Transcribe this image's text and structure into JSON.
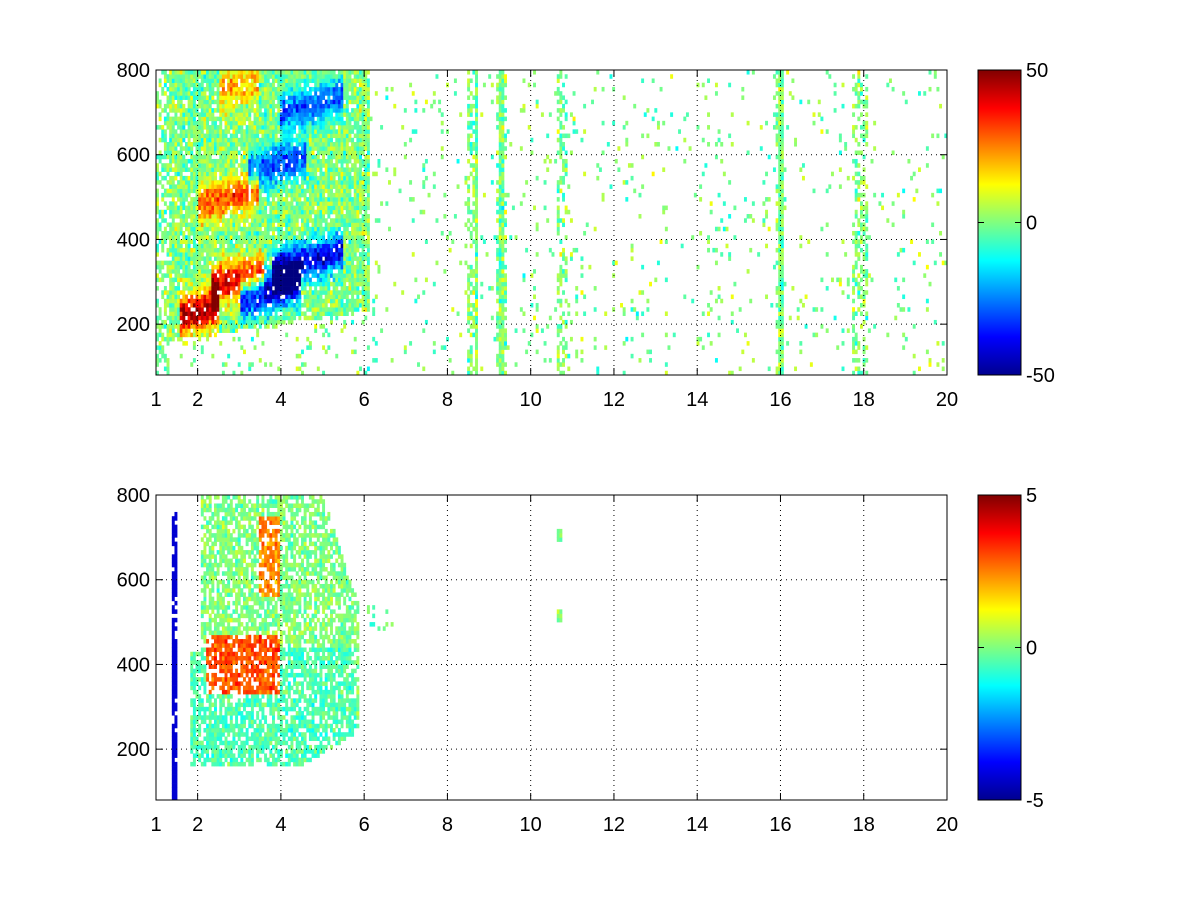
{
  "chart_data": [
    {
      "type": "heatmap",
      "title": "",
      "xlabel": "",
      "ylabel": "",
      "xlim": [
        1,
        20
      ],
      "ylim": [
        80,
        800
      ],
      "x_ticks": [
        1,
        2,
        4,
        6,
        8,
        10,
        12,
        14,
        16,
        18,
        20
      ],
      "x_tick_labels": [
        "1",
        "2",
        "4",
        "6",
        "8",
        "10",
        "12",
        "14",
        "16",
        "18",
        "20"
      ],
      "y_ticks": [
        200,
        400,
        600,
        800
      ],
      "y_tick_labels": [
        "200",
        "400",
        "600",
        "800"
      ],
      "grid": true,
      "colormap": "jet",
      "colorbar": {
        "range": [
          -50,
          50
        ],
        "ticks": [
          50,
          0,
          -50
        ],
        "tick_labels": [
          "50",
          "0",
          "-50"
        ]
      },
      "features": [
        {
          "x_range": [
            1.6,
            2.5
          ],
          "y": 220,
          "value": 45
        },
        {
          "x_range": [
            2.3,
            3.6
          ],
          "y": 290,
          "value": 40
        },
        {
          "x_range": [
            3.0,
            4.5
          ],
          "y": 260,
          "value": -45
        },
        {
          "x_range": [
            3.8,
            5.5
          ],
          "y": 330,
          "value": -40
        },
        {
          "x_range": [
            2.0,
            3.5
          ],
          "y": 480,
          "value": 30
        },
        {
          "x_range": [
            3.2,
            4.6
          ],
          "y": 560,
          "value": -30
        },
        {
          "x_range": [
            2.5,
            3.5
          ],
          "y": 750,
          "value": 20
        },
        {
          "x_range": [
            4.0,
            5.5
          ],
          "y": 700,
          "value": -30
        }
      ]
    },
    {
      "type": "heatmap",
      "title": "",
      "xlabel": "",
      "ylabel": "",
      "xlim": [
        1,
        20
      ],
      "ylim": [
        80,
        800
      ],
      "x_ticks": [
        1,
        2,
        4,
        6,
        8,
        10,
        12,
        14,
        16,
        18,
        20
      ],
      "x_tick_labels": [
        "1",
        "2",
        "4",
        "6",
        "8",
        "10",
        "12",
        "14",
        "16",
        "18",
        "20"
      ],
      "y_ticks": [
        200,
        400,
        600,
        800
      ],
      "y_tick_labels": [
        "200",
        "400",
        "600",
        "800"
      ],
      "grid": true,
      "colormap": "jet",
      "colorbar": {
        "range": [
          -5,
          5
        ],
        "ticks": [
          5,
          0,
          -5
        ],
        "tick_labels": [
          "5",
          "0",
          "-5"
        ]
      },
      "features": [
        {
          "x_range": [
            1.8,
            5.8
          ],
          "y_range": [
            160,
            440
          ],
          "value": -0.5
        },
        {
          "x_range": [
            2.0,
            5.8
          ],
          "y_range": [
            440,
            800
          ],
          "value": 0
        },
        {
          "x_range": [
            2.2,
            4.0
          ],
          "y_range": [
            330,
            470
          ],
          "value": 3
        },
        {
          "x_range": [
            3.5,
            4.0
          ],
          "y_range": [
            560,
            750
          ],
          "value": 2.5
        }
      ]
    }
  ]
}
